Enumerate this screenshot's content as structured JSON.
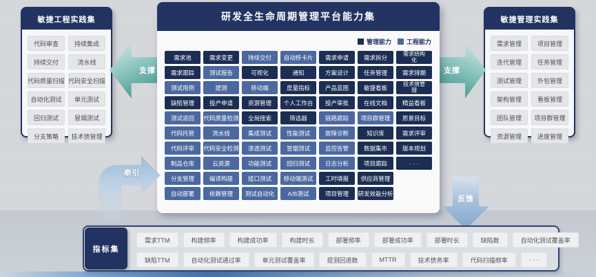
{
  "center": {
    "title": "研发全生命周期管理平台能力集",
    "legend": [
      {
        "label": "管理能力",
        "color": "#15284f"
      },
      {
        "label": "工程能力",
        "color": "#47659e"
      }
    ],
    "grid": [
      [
        {
          "label": "需求池",
          "type": "management"
        },
        {
          "label": "需求变更",
          "type": "management"
        },
        {
          "label": "持续交付",
          "type": "engineering"
        },
        {
          "label": "自动移卡片",
          "type": "engineering"
        },
        {
          "label": "需求申请",
          "type": "management"
        },
        {
          "label": "需求拆分",
          "type": "management"
        },
        {
          "label": "需求结构化",
          "type": "management",
          "wrap": true
        }
      ],
      [
        {
          "label": "需求跟踪",
          "type": "management"
        },
        {
          "label": "测试报告",
          "type": "engineering"
        },
        {
          "label": "可视化",
          "type": "management"
        },
        {
          "label": "通知",
          "type": "management"
        },
        {
          "label": "方案设计",
          "type": "management"
        },
        {
          "label": "任务管理",
          "type": "management"
        },
        {
          "label": "需求排期",
          "type": "management"
        }
      ],
      [
        {
          "label": "测试用例",
          "type": "engineering"
        },
        {
          "label": "提测",
          "type": "engineering"
        },
        {
          "label": "移动端",
          "type": "engineering"
        },
        {
          "label": "度量指标",
          "type": "management"
        },
        {
          "label": "产品蓝图",
          "type": "management"
        },
        {
          "label": "敏捷看板",
          "type": "management"
        },
        {
          "label": "技术债管理",
          "type": "management",
          "wrap": true
        }
      ],
      [
        {
          "label": "缺陷管理",
          "type": "management"
        },
        {
          "label": "投产申请",
          "type": "management"
        },
        {
          "label": "资源管理",
          "type": "management"
        },
        {
          "label": "个人工作台",
          "type": "management"
        },
        {
          "label": "投产审批",
          "type": "management"
        },
        {
          "label": "在线文档",
          "type": "management"
        },
        {
          "label": "精益看板",
          "type": "management"
        }
      ],
      [
        {
          "label": "测试退回",
          "type": "engineering"
        },
        {
          "label": "代码质量检测",
          "type": "engineering"
        },
        {
          "label": "全局搜索",
          "type": "management"
        },
        {
          "label": "筛选器",
          "type": "management"
        },
        {
          "label": "链路跟踪",
          "type": "engineering"
        },
        {
          "label": "项目群管理",
          "type": "engineering"
        },
        {
          "label": "愿景目标",
          "type": "management"
        }
      ],
      [
        {
          "label": "代码托管",
          "type": "engineering"
        },
        {
          "label": "流水线",
          "type": "engineering"
        },
        {
          "label": "集成测试",
          "type": "engineering"
        },
        {
          "label": "性能测试",
          "type": "engineering"
        },
        {
          "label": "故障诊断",
          "type": "engineering"
        },
        {
          "label": "知识库",
          "type": "management"
        },
        {
          "label": "需求评审",
          "type": "management"
        }
      ],
      [
        {
          "label": "代码评审",
          "type": "engineering"
        },
        {
          "label": "代码安全检测",
          "type": "engineering"
        },
        {
          "label": "渗透测试",
          "type": "engineering"
        },
        {
          "label": "冒烟测试",
          "type": "engineering"
        },
        {
          "label": "监控告警",
          "type": "engineering"
        },
        {
          "label": "数据集市",
          "type": "management"
        },
        {
          "label": "版本规划",
          "type": "management"
        }
      ],
      [
        {
          "label": "制品仓库",
          "type": "engineering"
        },
        {
          "label": "云资源",
          "type": "engineering"
        },
        {
          "label": "功能测试",
          "type": "engineering"
        },
        {
          "label": "回归测试",
          "type": "engineering"
        },
        {
          "label": "日志分析",
          "type": "engineering"
        },
        {
          "label": "项目跟踪",
          "type": "management"
        },
        {
          "label": "· · ·",
          "type": "management"
        }
      ],
      [
        {
          "label": "分支管理",
          "type": "engineering"
        },
        {
          "label": "编译构建",
          "type": "engineering"
        },
        {
          "label": "接口测试",
          "type": "engineering"
        },
        {
          "label": "移动端测试",
          "type": "engineering"
        },
        {
          "label": "工时填报",
          "type": "management"
        },
        {
          "label": "供应商管理",
          "type": "management"
        }
      ],
      [
        {
          "label": "自动部署",
          "type": "engineering"
        },
        {
          "label": "依赖管理",
          "type": "engineering"
        },
        {
          "label": "测试自动化",
          "type": "engineering"
        },
        {
          "label": "A/B测试",
          "type": "engineering"
        },
        {
          "label": "项目管理",
          "type": "management"
        },
        {
          "label": "研发效能分析",
          "type": "management"
        }
      ]
    ]
  },
  "left_panel": {
    "title": "敏捷工程实践集",
    "items": [
      "代码审查",
      "持续集成",
      "持续交付",
      "流水线",
      "代码质量扫描",
      "代码安全扫描",
      "自动化测试",
      "单元测试",
      "回归测试",
      "冒烟测试",
      "分支策略",
      "技术债管理"
    ]
  },
  "right_panel": {
    "title": "敏捷管理实践集",
    "items": [
      "需求管理",
      "项目管理",
      "迭代管理",
      "任务管理",
      "测试管理",
      "外包管理",
      "架构管理",
      "看板管理",
      "团队管理",
      "项目群管理",
      "资源管理",
      "进度管理"
    ]
  },
  "arrows": {
    "left_support_label": "支撑",
    "right_support_label": "支撑",
    "pull_label": "牵引",
    "feedback_label": "反馈"
  },
  "metrics": {
    "title": "指标集",
    "rows": [
      [
        "需求TTM",
        "构建频率",
        "构建成功率",
        "构建时长",
        "部署频率",
        "部署成功率",
        "部署时长",
        "缺陷数",
        "自动化测试覆盖率"
      ],
      [
        "缺陷TTM",
        "自动化测试通过率",
        "单元测试覆盖率",
        "提测回退数",
        "MTTR",
        "技术债务率",
        "代码扫描频率",
        "· · ·"
      ]
    ]
  },
  "colors": {
    "management": "#15284f",
    "engineering": "#47659e",
    "panel_navy": "#1c2d5e",
    "support_arrow_teal": "#2f8d85",
    "flow_arrow_blue": "#7ea7d0"
  }
}
